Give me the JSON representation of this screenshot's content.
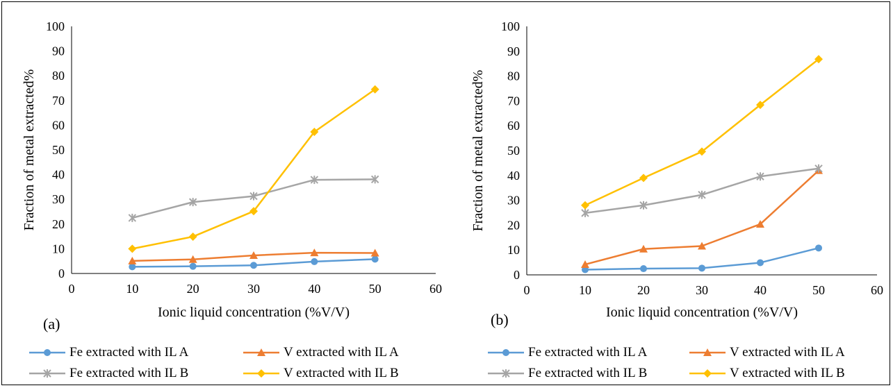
{
  "colors": {
    "fe_a": "#5B9BD5",
    "v_a": "#ED7D31",
    "fe_b": "#A5A5A5",
    "v_b": "#FFC000"
  },
  "chart_data": [
    {
      "panel": "(a)",
      "type": "line",
      "xlabel": "Ionic liquid concentration (%V/V)",
      "ylabel": "Fraction of metal extracted%",
      "xlim": [
        0,
        60
      ],
      "ylim": [
        0,
        100
      ],
      "xticks": [
        "0",
        "10",
        "20",
        "30",
        "40",
        "50",
        "60"
      ],
      "yticks": [
        "0",
        "10",
        "20",
        "30",
        "40",
        "50",
        "60",
        "70",
        "80",
        "90",
        "100"
      ],
      "grid": false,
      "legend": "bottom",
      "x": [
        10,
        20,
        30,
        40,
        50
      ],
      "series": [
        {
          "name": "Fe extracted with IL A",
          "marker": "circle",
          "color_key": "fe_a",
          "values": [
            2.7,
            2.9,
            3.3,
            4.8,
            5.8
          ]
        },
        {
          "name": "V extracted with IL A",
          "marker": "triangle",
          "color_key": "v_a",
          "values": [
            5.1,
            5.7,
            7.3,
            8.4,
            8.3
          ]
        },
        {
          "name": "Fe extracted with IL B",
          "marker": "star",
          "color_key": "fe_b",
          "values": [
            22.5,
            28.9,
            31.3,
            37.9,
            38.1
          ]
        },
        {
          "name": "V extracted with IL B",
          "marker": "diamond",
          "color_key": "v_b",
          "values": [
            10.0,
            14.9,
            25.2,
            57.3,
            74.5
          ]
        }
      ]
    },
    {
      "panel": "(b)",
      "type": "line",
      "xlabel": "Ionic liquid concentration (%V/V)",
      "ylabel": "Fraction of metal extracted%",
      "xlim": [
        0,
        60
      ],
      "ylim": [
        0,
        100
      ],
      "xticks": [
        "0",
        "10",
        "20",
        "30",
        "40",
        "50",
        "60"
      ],
      "yticks": [
        "0",
        "10",
        "20",
        "30",
        "40",
        "50",
        "60",
        "70",
        "80",
        "90",
        "100"
      ],
      "grid": false,
      "legend": "bottom",
      "x": [
        10,
        20,
        30,
        40,
        50
      ],
      "series": [
        {
          "name": "Fe extracted with IL A",
          "marker": "circle",
          "color_key": "fe_a",
          "values": [
            2.1,
            2.5,
            2.7,
            4.9,
            10.8
          ]
        },
        {
          "name": "V extracted with IL A",
          "marker": "triangle",
          "color_key": "v_a",
          "values": [
            4.2,
            10.4,
            11.6,
            20.4,
            42.0
          ]
        },
        {
          "name": "Fe extracted with IL B",
          "marker": "star",
          "color_key": "fe_b",
          "values": [
            24.9,
            28.0,
            32.2,
            39.6,
            42.8
          ]
        },
        {
          "name": "V extracted with IL B",
          "marker": "diamond",
          "color_key": "v_b",
          "values": [
            28.0,
            39.0,
            49.6,
            68.4,
            86.8
          ]
        }
      ]
    }
  ]
}
